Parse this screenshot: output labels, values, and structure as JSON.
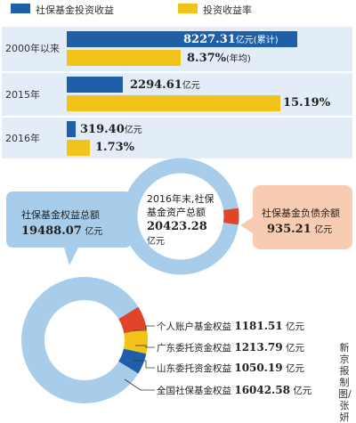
{
  "legend": {
    "item1": {
      "label": "社保基金投资收益",
      "color": "#1f5fa8"
    },
    "item2": {
      "label": "投资收益率",
      "color": "#f2c318"
    }
  },
  "rows": [
    {
      "year": "2000年以来",
      "income": "8227.31",
      "income_unit": "亿元(累计)",
      "rate": "8.37%",
      "rate_note": "(年均)"
    },
    {
      "year": "2015年",
      "income": "2294.61",
      "income_unit": "亿元",
      "rate": "15.19%",
      "rate_note": ""
    },
    {
      "year": "2016年",
      "income": "319.40",
      "income_unit": "亿元",
      "rate": "1.73%",
      "rate_note": ""
    }
  ],
  "summary": {
    "equity": {
      "label": "社保基金权益总额",
      "value": "19488.07",
      "unit": "亿元"
    },
    "assets": {
      "label_line1": "2016年末,社保",
      "label_line2": "基金资产总额",
      "value": "20423.28",
      "unit": "亿元"
    },
    "liabilities": {
      "label": "社保基金负债余额",
      "value": "935.21",
      "unit": "亿元"
    }
  },
  "breakdown": [
    {
      "label": "个人账户基金权益",
      "value": "1181.51",
      "unit": "亿元",
      "color": "#e0452a"
    },
    {
      "label": "广东委托资金权益",
      "value": "1213.79",
      "unit": "亿元",
      "color": "#f2c318"
    },
    {
      "label": "山东委托资金权益",
      "value": "1050.19",
      "unit": "亿元",
      "color": "#1f5fa8"
    },
    {
      "label": "全国社保基金权益",
      "value": "16042.58",
      "unit": "亿元",
      "color": "#a8cdea"
    }
  ],
  "credit": "新京报制图/张妍",
  "chart_data": [
    {
      "type": "bar",
      "categories": [
        "2000年以来",
        "2015年",
        "2016年"
      ],
      "series": [
        {
          "name": "社保基金投资收益",
          "values": [
            8227.31,
            2294.61,
            319.4
          ],
          "unit": "亿元",
          "color": "#1f5fa8"
        },
        {
          "name": "投资收益率",
          "values": [
            8.37,
            15.19,
            1.73
          ],
          "unit": "%",
          "color": "#f2c318"
        }
      ],
      "orientation": "horizontal",
      "legend": "top"
    },
    {
      "type": "pie",
      "title": "2016年末,社保基金资产总额 20423.28亿元",
      "labels": [
        "社保基金权益总额",
        "社保基金负债余额"
      ],
      "values": [
        19488.07,
        935.21
      ],
      "colors": [
        "#a8cdea",
        "#e0452a"
      ]
    },
    {
      "type": "pie",
      "title": "社保基金权益总额 19488.07亿元",
      "labels": [
        "个人账户基金权益",
        "广东委托资金权益",
        "山东委托资金权益",
        "全国社保基金权益"
      ],
      "values": [
        1181.51,
        1213.79,
        1050.19,
        16042.58
      ],
      "colors": [
        "#e0452a",
        "#f2c318",
        "#1f5fa8",
        "#a8cdea"
      ]
    }
  ]
}
